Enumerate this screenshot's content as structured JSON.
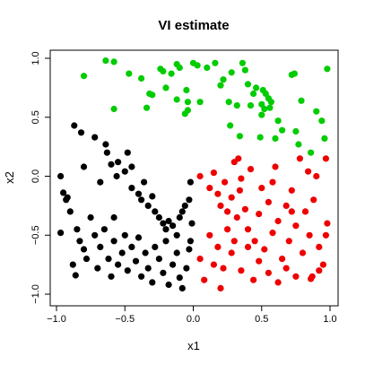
{
  "chart_data": {
    "type": "scatter",
    "title": "VI estimate",
    "xlabel": "x1",
    "ylabel": "x2",
    "xlim": [
      -1.0,
      1.0
    ],
    "ylim": [
      -1.0,
      1.0
    ],
    "xticks": [
      -1.0,
      -0.5,
      0.0,
      0.5,
      1.0
    ],
    "yticks": [
      -1.0,
      -0.5,
      0.0,
      0.5,
      1.0
    ],
    "xtick_labels": [
      "−1.0",
      "−0.5",
      "0.0",
      "0.5",
      "1.0"
    ],
    "ytick_labels": [
      "−1.0",
      "−0.5",
      "0.0",
      "0.5",
      "1.0"
    ],
    "grid": false,
    "legend": "none",
    "series": [
      {
        "color": "#00cc00",
        "points": [
          [
            -0.8,
            0.85
          ],
          [
            -0.64,
            0.98
          ],
          [
            -0.58,
            0.97
          ],
          [
            -0.58,
            0.57
          ],
          [
            -0.47,
            0.87
          ],
          [
            -0.38,
            0.83
          ],
          [
            -0.34,
            0.58
          ],
          [
            -0.32,
            0.7
          ],
          [
            -0.3,
            0.69
          ],
          [
            -0.24,
            0.91
          ],
          [
            -0.22,
            0.89
          ],
          [
            -0.2,
            0.75
          ],
          [
            -0.16,
            0.87
          ],
          [
            -0.12,
            0.65
          ],
          [
            -0.12,
            0.95
          ],
          [
            -0.1,
            0.92
          ],
          [
            -0.06,
            0.53
          ],
          [
            -0.05,
            0.73
          ],
          [
            -0.04,
            0.63
          ],
          [
            0.0,
            0.96
          ],
          [
            0.03,
            0.94
          ],
          [
            0.05,
            0.63
          ],
          [
            0.1,
            0.92
          ],
          [
            0.16,
            0.96
          ],
          [
            0.2,
            0.77
          ],
          [
            0.22,
            0.82
          ],
          [
            0.26,
            0.63
          ],
          [
            0.27,
            0.43
          ],
          [
            0.28,
            0.88
          ],
          [
            0.32,
            0.6
          ],
          [
            0.34,
            0.34
          ],
          [
            0.36,
            0.96
          ],
          [
            0.38,
            0.9
          ],
          [
            0.4,
            0.78
          ],
          [
            0.42,
            0.6
          ],
          [
            0.44,
            0.7
          ],
          [
            0.46,
            0.75
          ],
          [
            0.49,
            0.33
          ],
          [
            0.5,
            0.52
          ],
          [
            0.5,
            0.61
          ],
          [
            0.51,
            0.73
          ],
          [
            0.53,
            0.7
          ],
          [
            0.55,
            0.66
          ],
          [
            0.56,
            0.58
          ],
          [
            0.57,
            0.63
          ],
          [
            0.6,
            0.32
          ],
          [
            0.62,
            0.47
          ],
          [
            0.65,
            0.39
          ],
          [
            0.72,
            0.86
          ],
          [
            0.74,
            0.87
          ],
          [
            0.75,
            0.38
          ],
          [
            0.77,
            0.27
          ],
          [
            0.79,
            0.64
          ],
          [
            0.86,
            0.2
          ],
          [
            0.9,
            0.55
          ],
          [
            0.94,
            0.47
          ],
          [
            0.96,
            0.32
          ],
          [
            0.98,
            0.91
          ],
          [
            -0.04,
            0.56
          ],
          [
            0.52,
            0.57
          ]
        ]
      },
      {
        "color": "#000000",
        "points": [
          [
            -0.87,
            0.43
          ],
          [
            -0.82,
            0.37
          ],
          [
            -0.8,
            0.08
          ],
          [
            -0.72,
            0.33
          ],
          [
            -0.64,
            0.27
          ],
          [
            -0.63,
            0.2
          ],
          [
            -0.6,
            0.1
          ],
          [
            -0.56,
            0.0
          ],
          [
            -0.55,
            0.12
          ],
          [
            -0.5,
            0.04
          ],
          [
            -0.48,
            0.2
          ],
          [
            -0.45,
            -0.1
          ],
          [
            -0.4,
            -0.15
          ],
          [
            -0.38,
            -0.2
          ],
          [
            -0.36,
            -0.05
          ],
          [
            -0.33,
            -0.25
          ],
          [
            -0.3,
            -0.17
          ],
          [
            -0.28,
            -0.3
          ],
          [
            -0.25,
            -0.35
          ],
          [
            -0.22,
            -0.4
          ],
          [
            -0.2,
            -0.45
          ],
          [
            -0.18,
            -0.38
          ],
          [
            -0.15,
            -0.42
          ],
          [
            -0.12,
            -0.5
          ],
          [
            -0.1,
            -0.35
          ],
          [
            -0.08,
            -0.3
          ],
          [
            -0.06,
            -0.25
          ],
          [
            -0.03,
            -0.2
          ],
          [
            -0.02,
            -0.05
          ],
          [
            -0.01,
            -0.4
          ],
          [
            -0.97,
            0.0
          ],
          [
            -0.95,
            -0.14
          ],
          [
            -0.93,
            -0.2
          ],
          [
            -0.9,
            -0.3
          ],
          [
            -0.85,
            -0.45
          ],
          [
            -0.83,
            -0.55
          ],
          [
            -0.8,
            -0.62
          ],
          [
            -0.78,
            -0.7
          ],
          [
            -0.75,
            -0.35
          ],
          [
            -0.72,
            -0.5
          ],
          [
            -0.7,
            -0.78
          ],
          [
            -0.68,
            -0.6
          ],
          [
            -0.65,
            -0.45
          ],
          [
            -0.62,
            -0.7
          ],
          [
            -0.6,
            -0.85
          ],
          [
            -0.58,
            -0.55
          ],
          [
            -0.55,
            -0.75
          ],
          [
            -0.52,
            -0.65
          ],
          [
            -0.5,
            -0.5
          ],
          [
            -0.48,
            -0.8
          ],
          [
            -0.45,
            -0.6
          ],
          [
            -0.42,
            -0.72
          ],
          [
            -0.4,
            -0.52
          ],
          [
            -0.38,
            -0.85
          ],
          [
            -0.35,
            -0.65
          ],
          [
            -0.33,
            -0.78
          ],
          [
            -0.3,
            -0.9
          ],
          [
            -0.28,
            -0.6
          ],
          [
            -0.25,
            -0.7
          ],
          [
            -0.22,
            -0.82
          ],
          [
            -0.2,
            -0.55
          ],
          [
            -0.18,
            -0.92
          ],
          [
            -0.15,
            -0.75
          ],
          [
            -0.12,
            -0.65
          ],
          [
            -0.1,
            -0.86
          ],
          [
            -0.08,
            -0.95
          ],
          [
            -0.05,
            -0.78
          ],
          [
            -0.03,
            -0.62
          ],
          [
            -0.02,
            -0.55
          ],
          [
            -0.97,
            -0.48
          ],
          [
            -0.88,
            -0.75
          ],
          [
            -0.86,
            -0.84
          ],
          [
            -0.92,
            -0.18
          ],
          [
            -0.68,
            -0.05
          ],
          [
            -0.58,
            -0.35
          ],
          [
            -0.45,
            0.08
          ]
        ]
      },
      {
        "color": "#ee0000",
        "points": [
          [
            0.05,
            0.0
          ],
          [
            0.12,
            -0.1
          ],
          [
            0.15,
            0.03
          ],
          [
            0.18,
            -0.15
          ],
          [
            0.2,
            -0.25
          ],
          [
            0.23,
            -0.05
          ],
          [
            0.25,
            -0.3
          ],
          [
            0.28,
            -0.18
          ],
          [
            0.3,
            0.12
          ],
          [
            0.32,
            -0.35
          ],
          [
            0.33,
            0.15
          ],
          [
            0.35,
            -0.02
          ],
          [
            0.38,
            -0.28
          ],
          [
            0.4,
            -0.45
          ],
          [
            0.42,
            0.06
          ],
          [
            0.45,
            -0.55
          ],
          [
            0.48,
            -0.32
          ],
          [
            0.5,
            -0.1
          ],
          [
            0.52,
            -0.62
          ],
          [
            0.55,
            -0.22
          ],
          [
            0.58,
            -0.48
          ],
          [
            0.6,
            0.08
          ],
          [
            0.62,
            -0.38
          ],
          [
            0.65,
            -0.7
          ],
          [
            0.68,
            -0.25
          ],
          [
            0.7,
            -0.55
          ],
          [
            0.72,
            -0.12
          ],
          [
            0.75,
            -0.42
          ],
          [
            0.78,
            0.15
          ],
          [
            0.8,
            -0.65
          ],
          [
            0.82,
            -0.3
          ],
          [
            0.84,
            0.04
          ],
          [
            0.85,
            -0.5
          ],
          [
            0.87,
            -0.85
          ],
          [
            0.88,
            -0.2
          ],
          [
            0.9,
            0.0
          ],
          [
            0.92,
            -0.6
          ],
          [
            0.95,
            -0.75
          ],
          [
            0.97,
            0.15
          ],
          [
            0.98,
            -0.4
          ],
          [
            0.05,
            -0.7
          ],
          [
            0.08,
            -0.88
          ],
          [
            0.12,
            -0.5
          ],
          [
            0.15,
            -0.75
          ],
          [
            0.18,
            -0.6
          ],
          [
            0.22,
            -0.78
          ],
          [
            0.25,
            -0.45
          ],
          [
            0.28,
            -0.65
          ],
          [
            0.3,
            -0.55
          ],
          [
            0.35,
            -0.8
          ],
          [
            0.4,
            -0.6
          ],
          [
            0.44,
            -0.88
          ],
          [
            0.48,
            -0.72
          ],
          [
            0.55,
            -0.82
          ],
          [
            0.62,
            -0.9
          ],
          [
            0.68,
            -0.78
          ],
          [
            0.75,
            -0.85
          ],
          [
            0.86,
            -0.87
          ],
          [
            0.92,
            -0.8
          ],
          [
            0.97,
            -0.5
          ],
          [
            0.2,
            -0.95
          ],
          [
            0.34,
            -0.12
          ],
          [
            0.58,
            -0.05
          ],
          [
            0.72,
            -0.3
          ]
        ]
      }
    ]
  }
}
